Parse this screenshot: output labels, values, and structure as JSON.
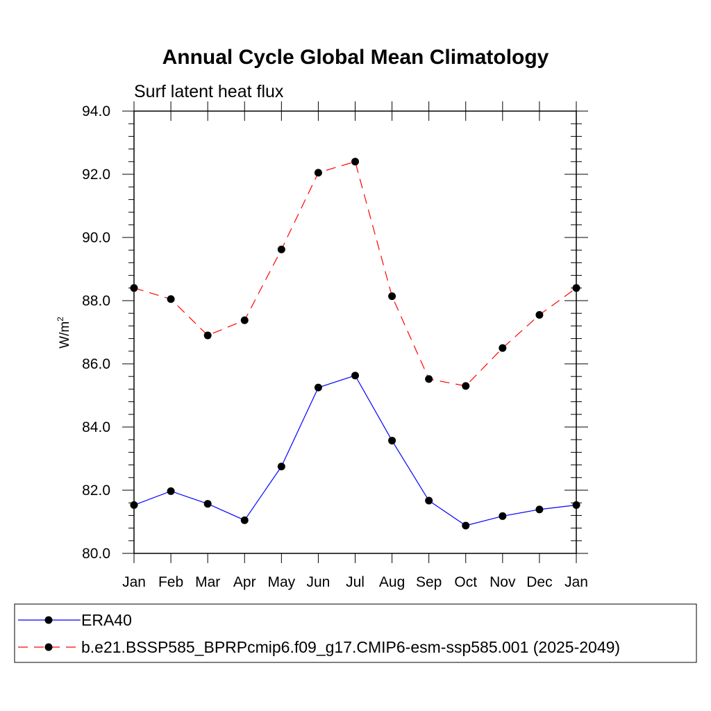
{
  "chart_data": {
    "type": "line",
    "title": "Annual Cycle Global Mean Climatology",
    "subtitle": "Surf latent heat flux",
    "ylabel": "W/m",
    "ylabel_sup": "2",
    "xlabel": "",
    "ylim": [
      80.0,
      94.0
    ],
    "yticks": [
      "80.0",
      "82.0",
      "84.0",
      "86.0",
      "88.0",
      "90.0",
      "92.0",
      "94.0"
    ],
    "categories": [
      "Jan",
      "Feb",
      "Mar",
      "Apr",
      "May",
      "Jun",
      "Jul",
      "Aug",
      "Sep",
      "Oct",
      "Nov",
      "Dec",
      "Jan"
    ],
    "series": [
      {
        "name": "ERA40",
        "color": "#0000ff",
        "dash": "solid",
        "values": [
          81.53,
          81.97,
          81.57,
          81.05,
          82.75,
          85.25,
          85.63,
          83.57,
          81.67,
          80.88,
          81.18,
          81.39,
          81.53
        ]
      },
      {
        "name": "b.e21.BSSP585_BPRPcmip6.f09_g17.CMIP6-esm-ssp585.001 (2025-2049)",
        "color": "#ff0000",
        "dash": "dashed",
        "values": [
          88.4,
          88.05,
          86.9,
          87.38,
          89.62,
          92.05,
          92.4,
          88.14,
          85.52,
          85.3,
          86.5,
          87.55,
          88.4
        ]
      }
    ],
    "legend_position": "bottom"
  }
}
